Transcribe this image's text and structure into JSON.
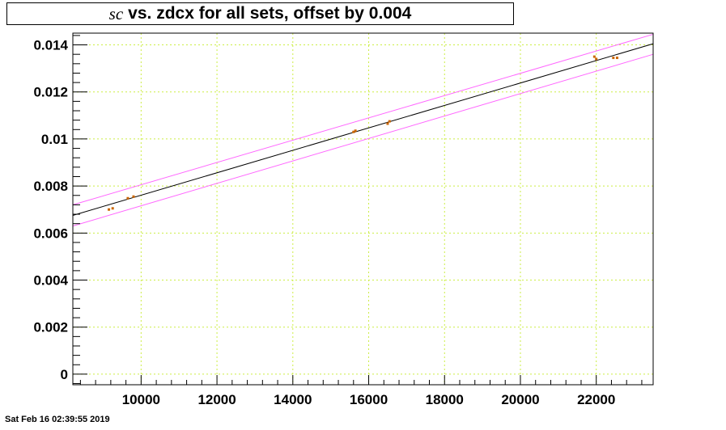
{
  "title": {
    "var": "sc",
    "rest": "vs. zdcx for all sets, offset by 0.004"
  },
  "footer": {
    "timestamp": "Sat Feb 16 02:39:55 2019"
  },
  "colors": {
    "fit": "#000000",
    "band": "#ff66ff",
    "points": "#cc6600",
    "grid": "#ccee44"
  },
  "chart_data": {
    "type": "scatter",
    "title": "sc vs. zdcx for all sets, offset by 0.004",
    "xlabel": "",
    "ylabel": "",
    "xlim": [
      8200,
      23500
    ],
    "ylim": [
      -0.00045,
      0.0145
    ],
    "xticks": [
      10000,
      12000,
      14000,
      16000,
      18000,
      20000,
      22000
    ],
    "xtick_labels": [
      "10000",
      "12000",
      "14000",
      "16000",
      "18000",
      "20000",
      "22000"
    ],
    "yticks": [
      0,
      0.002,
      0.004,
      0.006,
      0.008,
      0.01,
      0.012,
      0.014
    ],
    "ytick_labels": [
      "0",
      "0.002",
      "0.004",
      "0.006",
      "0.008",
      "0.01",
      "0.012",
      "0.014"
    ],
    "grid": true,
    "points": {
      "x": [
        9150,
        9250,
        9650,
        9800,
        15600,
        15650,
        16500,
        16550,
        21950,
        22000,
        22450,
        22550
      ],
      "y": [
        0.007,
        0.00705,
        0.00748,
        0.00755,
        0.0103,
        0.01035,
        0.01065,
        0.01075,
        0.0135,
        0.0134,
        0.01345,
        0.01345
      ]
    },
    "fit_line": {
      "x": [
        8200,
        23500
      ],
      "y": [
        0.00675,
        0.01405
      ]
    },
    "band_upper": {
      "x": [
        8200,
        23500
      ],
      "y": [
        0.0072,
        0.01445
      ]
    },
    "band_lower": {
      "x": [
        8200,
        23500
      ],
      "y": [
        0.0063,
        0.0136
      ]
    }
  }
}
